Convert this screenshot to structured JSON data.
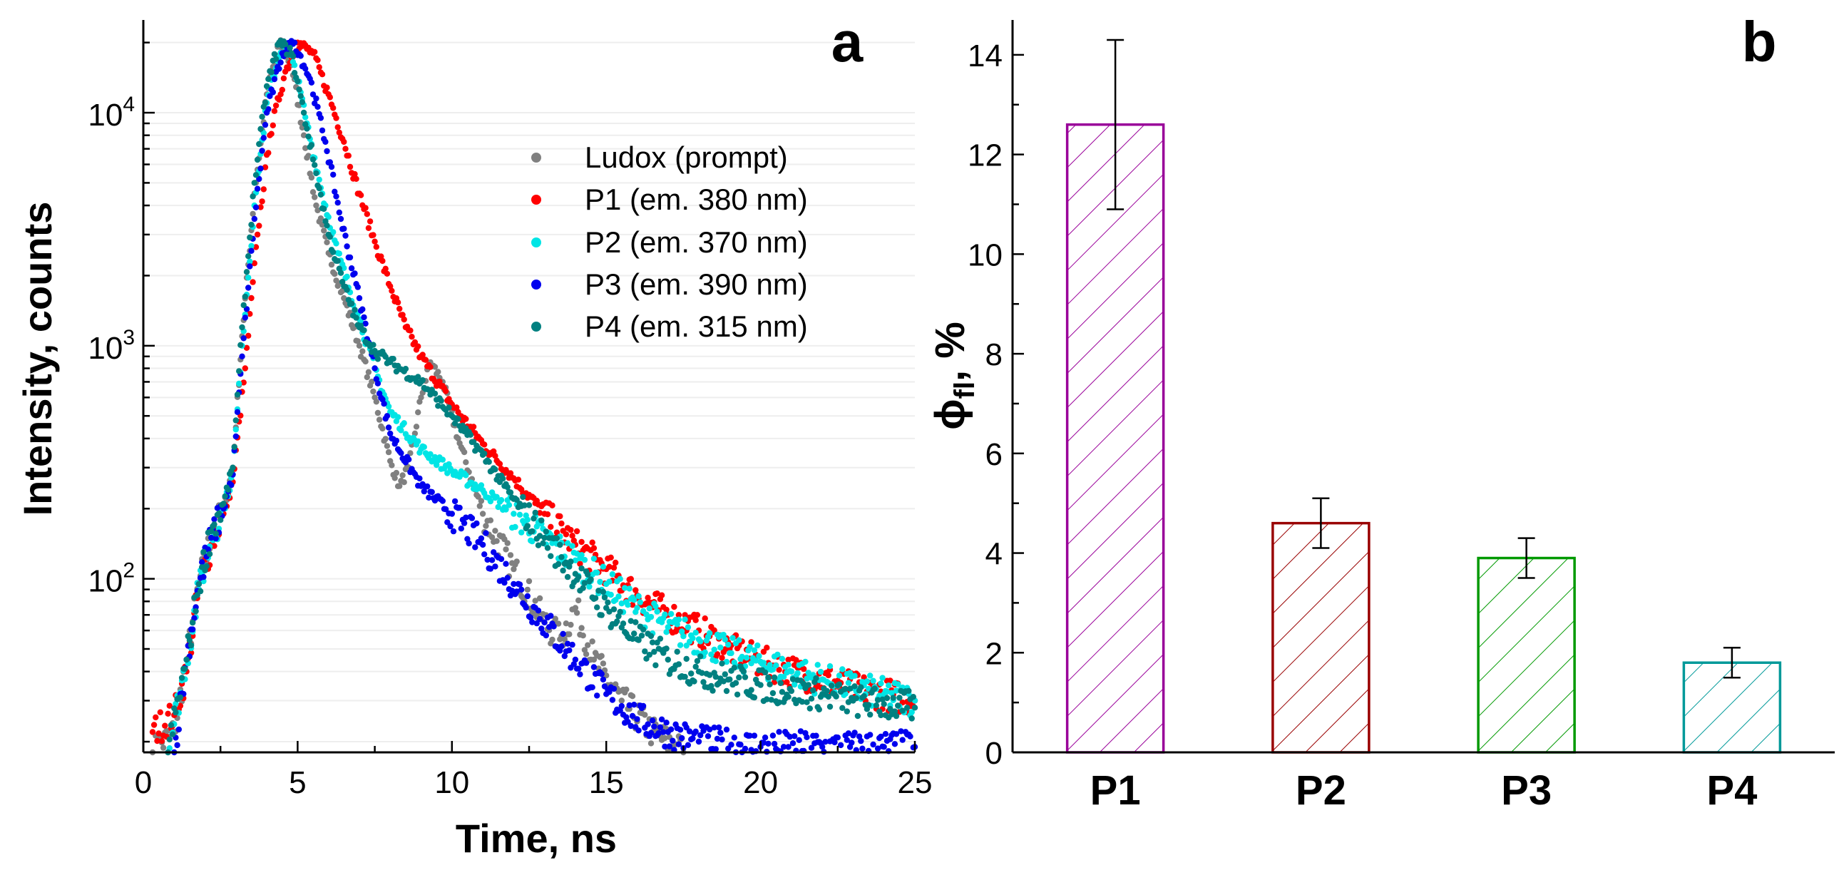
{
  "colors": {
    "axis": "#000000",
    "grid": "#eeeeee",
    "ludox": "#808080",
    "p1": "#ff0000",
    "p2": "#00e5e5",
    "p3": "#0000ee",
    "p4": "#008080",
    "bar_p1": "#990099",
    "bar_p2": "#990000",
    "bar_p3": "#009900",
    "bar_p4": "#009999"
  },
  "chart_data": [
    {
      "id": "a",
      "type": "scatter",
      "panel_label": "a",
      "xlabel": "Time, ns",
      "ylabel": "Intensity, counts",
      "xlim": [
        0,
        25
      ],
      "ylim": [
        18,
        25000
      ],
      "yscale": "log",
      "xticks": [
        0,
        5,
        10,
        15,
        20,
        25
      ],
      "xtick_labels": [
        "0",
        "5",
        "10",
        "15",
        "20",
        "25"
      ],
      "ytick_labels": [
        {
          "value": 100,
          "base": "10",
          "exp": "2"
        },
        {
          "value": 1000,
          "base": "10",
          "exp": "3"
        },
        {
          "value": 10000,
          "base": "10",
          "exp": "4"
        }
      ],
      "legend_position": "top-right",
      "series": [
        {
          "name": "Ludox (prompt)",
          "color_key": "ludox",
          "points": [
            [
              0.3,
              18
            ],
            [
              1.0,
              22
            ],
            [
              1.4,
              45
            ],
            [
              1.8,
              95
            ],
            [
              2.2,
              150
            ],
            [
              2.6,
              200
            ],
            [
              2.9,
              300
            ],
            [
              3.2,
              1100
            ],
            [
              3.6,
              4500
            ],
            [
              4.0,
              12000
            ],
            [
              4.4,
              20000
            ],
            [
              4.8,
              16000
            ],
            [
              5.2,
              8000
            ],
            [
              5.6,
              4000
            ],
            [
              6.0,
              2500
            ],
            [
              6.5,
              1600
            ],
            [
              7.0,
              1000
            ],
            [
              7.5,
              600
            ],
            [
              8.0,
              320
            ],
            [
              8.3,
              250
            ],
            [
              8.6,
              300
            ],
            [
              9.0,
              600
            ],
            [
              9.3,
              850
            ],
            [
              9.7,
              700
            ],
            [
              10.2,
              400
            ],
            [
              11.0,
              190
            ],
            [
              12.0,
              110
            ],
            [
              13.0,
              65
            ],
            [
              13.5,
              55
            ],
            [
              14.0,
              75
            ],
            [
              14.6,
              45
            ],
            [
              15.5,
              30
            ],
            [
              16.5,
              22
            ],
            [
              17.5,
              18
            ]
          ]
        },
        {
          "name": "P1 (em. 380 nm)",
          "color_key": "p1",
          "points": [
            [
              0.3,
              22
            ],
            [
              1.0,
              26
            ],
            [
              1.4,
              40
            ],
            [
              1.8,
              90
            ],
            [
              2.2,
              140
            ],
            [
              2.6,
              190
            ],
            [
              2.9,
              260
            ],
            [
              3.3,
              800
            ],
            [
              3.7,
              3000
            ],
            [
              4.1,
              8000
            ],
            [
              4.6,
              15000
            ],
            [
              5.0,
              20000
            ],
            [
              5.5,
              18000
            ],
            [
              6.0,
              12000
            ],
            [
              6.5,
              7500
            ],
            [
              7.0,
              4500
            ],
            [
              7.5,
              2800
            ],
            [
              8.0,
              1800
            ],
            [
              8.5,
              1200
            ],
            [
              9.0,
              900
            ],
            [
              10.0,
              560
            ],
            [
              11.0,
              380
            ],
            [
              12.0,
              270
            ],
            [
              13.0,
              190
            ],
            [
              14.0,
              140
            ],
            [
              15.0,
              110
            ],
            [
              16.0,
              85
            ],
            [
              17.0,
              70
            ],
            [
              18.0,
              60
            ],
            [
              19.0,
              50
            ],
            [
              20.0,
              44
            ],
            [
              21.0,
              40
            ],
            [
              22.0,
              37
            ],
            [
              23.0,
              34
            ],
            [
              24.0,
              32
            ],
            [
              25.0,
              30
            ]
          ]
        },
        {
          "name": "P2 (em. 370 nm)",
          "color_key": "p2",
          "points": [
            [
              0.8,
              18
            ],
            [
              1.4,
              45
            ],
            [
              1.8,
              90
            ],
            [
              2.2,
              150
            ],
            [
              2.6,
              200
            ],
            [
              2.9,
              280
            ],
            [
              3.2,
              1000
            ],
            [
              3.6,
              4000
            ],
            [
              4.0,
              11000
            ],
            [
              4.5,
              20000
            ],
            [
              4.9,
              16000
            ],
            [
              5.3,
              9000
            ],
            [
              5.8,
              4500
            ],
            [
              6.3,
              2500
            ],
            [
              7.0,
              1300
            ],
            [
              7.5,
              800
            ],
            [
              8.0,
              520
            ],
            [
              9.0,
              360
            ],
            [
              10.0,
              290
            ],
            [
              11.0,
              240
            ],
            [
              12.0,
              190
            ],
            [
              13.0,
              150
            ],
            [
              14.0,
              120
            ],
            [
              15.0,
              95
            ],
            [
              16.0,
              75
            ],
            [
              17.0,
              62
            ],
            [
              18.0,
              55
            ],
            [
              19.0,
              48
            ],
            [
              20.0,
              44
            ],
            [
              21.0,
              40
            ],
            [
              22.0,
              37
            ],
            [
              23.0,
              34
            ],
            [
              24.0,
              32
            ],
            [
              25.0,
              30
            ]
          ]
        },
        {
          "name": "P3 (em. 390 nm)",
          "color_key": "p3",
          "points": [
            [
              1.0,
              18
            ],
            [
              1.4,
              45
            ],
            [
              1.8,
              95
            ],
            [
              2.2,
              150
            ],
            [
              2.6,
              200
            ],
            [
              2.9,
              280
            ],
            [
              3.2,
              900
            ],
            [
              3.6,
              3500
            ],
            [
              4.0,
              10000
            ],
            [
              4.5,
              18000
            ],
            [
              4.9,
              20000
            ],
            [
              5.4,
              14000
            ],
            [
              5.9,
              7500
            ],
            [
              6.4,
              3500
            ],
            [
              7.0,
              1600
            ],
            [
              7.5,
              800
            ],
            [
              8.0,
              420
            ],
            [
              9.0,
              250
            ],
            [
              10.0,
              190
            ],
            [
              11.0,
              140
            ],
            [
              12.0,
              95
            ],
            [
              13.0,
              65
            ],
            [
              14.0,
              45
            ],
            [
              15.0,
              32
            ],
            [
              16.0,
              25
            ],
            [
              17.0,
              22
            ],
            [
              18.0,
              20
            ],
            [
              20.0,
              19
            ],
            [
              22.0,
              19
            ],
            [
              24.0,
              19
            ],
            [
              25.0,
              19
            ]
          ]
        },
        {
          "name": "P4 (em. 315 nm)",
          "color_key": "p4",
          "points": [
            [
              0.8,
              18
            ],
            [
              1.4,
              45
            ],
            [
              1.8,
              95
            ],
            [
              2.2,
              160
            ],
            [
              2.6,
              210
            ],
            [
              2.9,
              300
            ],
            [
              3.2,
              1200
            ],
            [
              3.6,
              5000
            ],
            [
              4.0,
              13000
            ],
            [
              4.4,
              20000
            ],
            [
              4.8,
              18000
            ],
            [
              5.2,
              10000
            ],
            [
              5.6,
              5500
            ],
            [
              6.0,
              3000
            ],
            [
              6.5,
              1800
            ],
            [
              7.0,
              1200
            ],
            [
              7.5,
              950
            ],
            [
              8.0,
              850
            ],
            [
              9.0,
              700
            ],
            [
              10.0,
              500
            ],
            [
              11.0,
              340
            ],
            [
              12.0,
              220
            ],
            [
              13.0,
              150
            ],
            [
              14.0,
              105
            ],
            [
              15.0,
              75
            ],
            [
              16.0,
              55
            ],
            [
              17.0,
              45
            ],
            [
              18.0,
              40
            ],
            [
              19.0,
              37
            ],
            [
              20.0,
              35
            ],
            [
              21.0,
              33
            ],
            [
              22.0,
              32
            ],
            [
              23.0,
              30
            ],
            [
              24.0,
              29
            ],
            [
              25.0,
              28
            ]
          ]
        }
      ]
    },
    {
      "id": "b",
      "type": "bar",
      "panel_label": "b",
      "categories": [
        "P1",
        "P2",
        "P3",
        "P4"
      ],
      "values": [
        12.6,
        4.6,
        3.9,
        1.8
      ],
      "errors": [
        [
          10.9,
          14.3
        ],
        [
          4.1,
          5.1
        ],
        [
          3.5,
          4.3
        ],
        [
          1.5,
          2.1
        ]
      ],
      "bar_color_keys": [
        "bar_p1",
        "bar_p2",
        "bar_p3",
        "bar_p4"
      ],
      "ylim": [
        0,
        14.7
      ],
      "yticks": [
        0,
        2,
        4,
        6,
        8,
        10,
        12,
        14
      ],
      "ytick_labels": [
        "0",
        "2",
        "4",
        "6",
        "8",
        "10",
        "12",
        "14"
      ],
      "ylabel": {
        "symbol": "ϕ",
        "subscript": "fl",
        "suffix": ", %"
      },
      "xlabel": ""
    }
  ]
}
